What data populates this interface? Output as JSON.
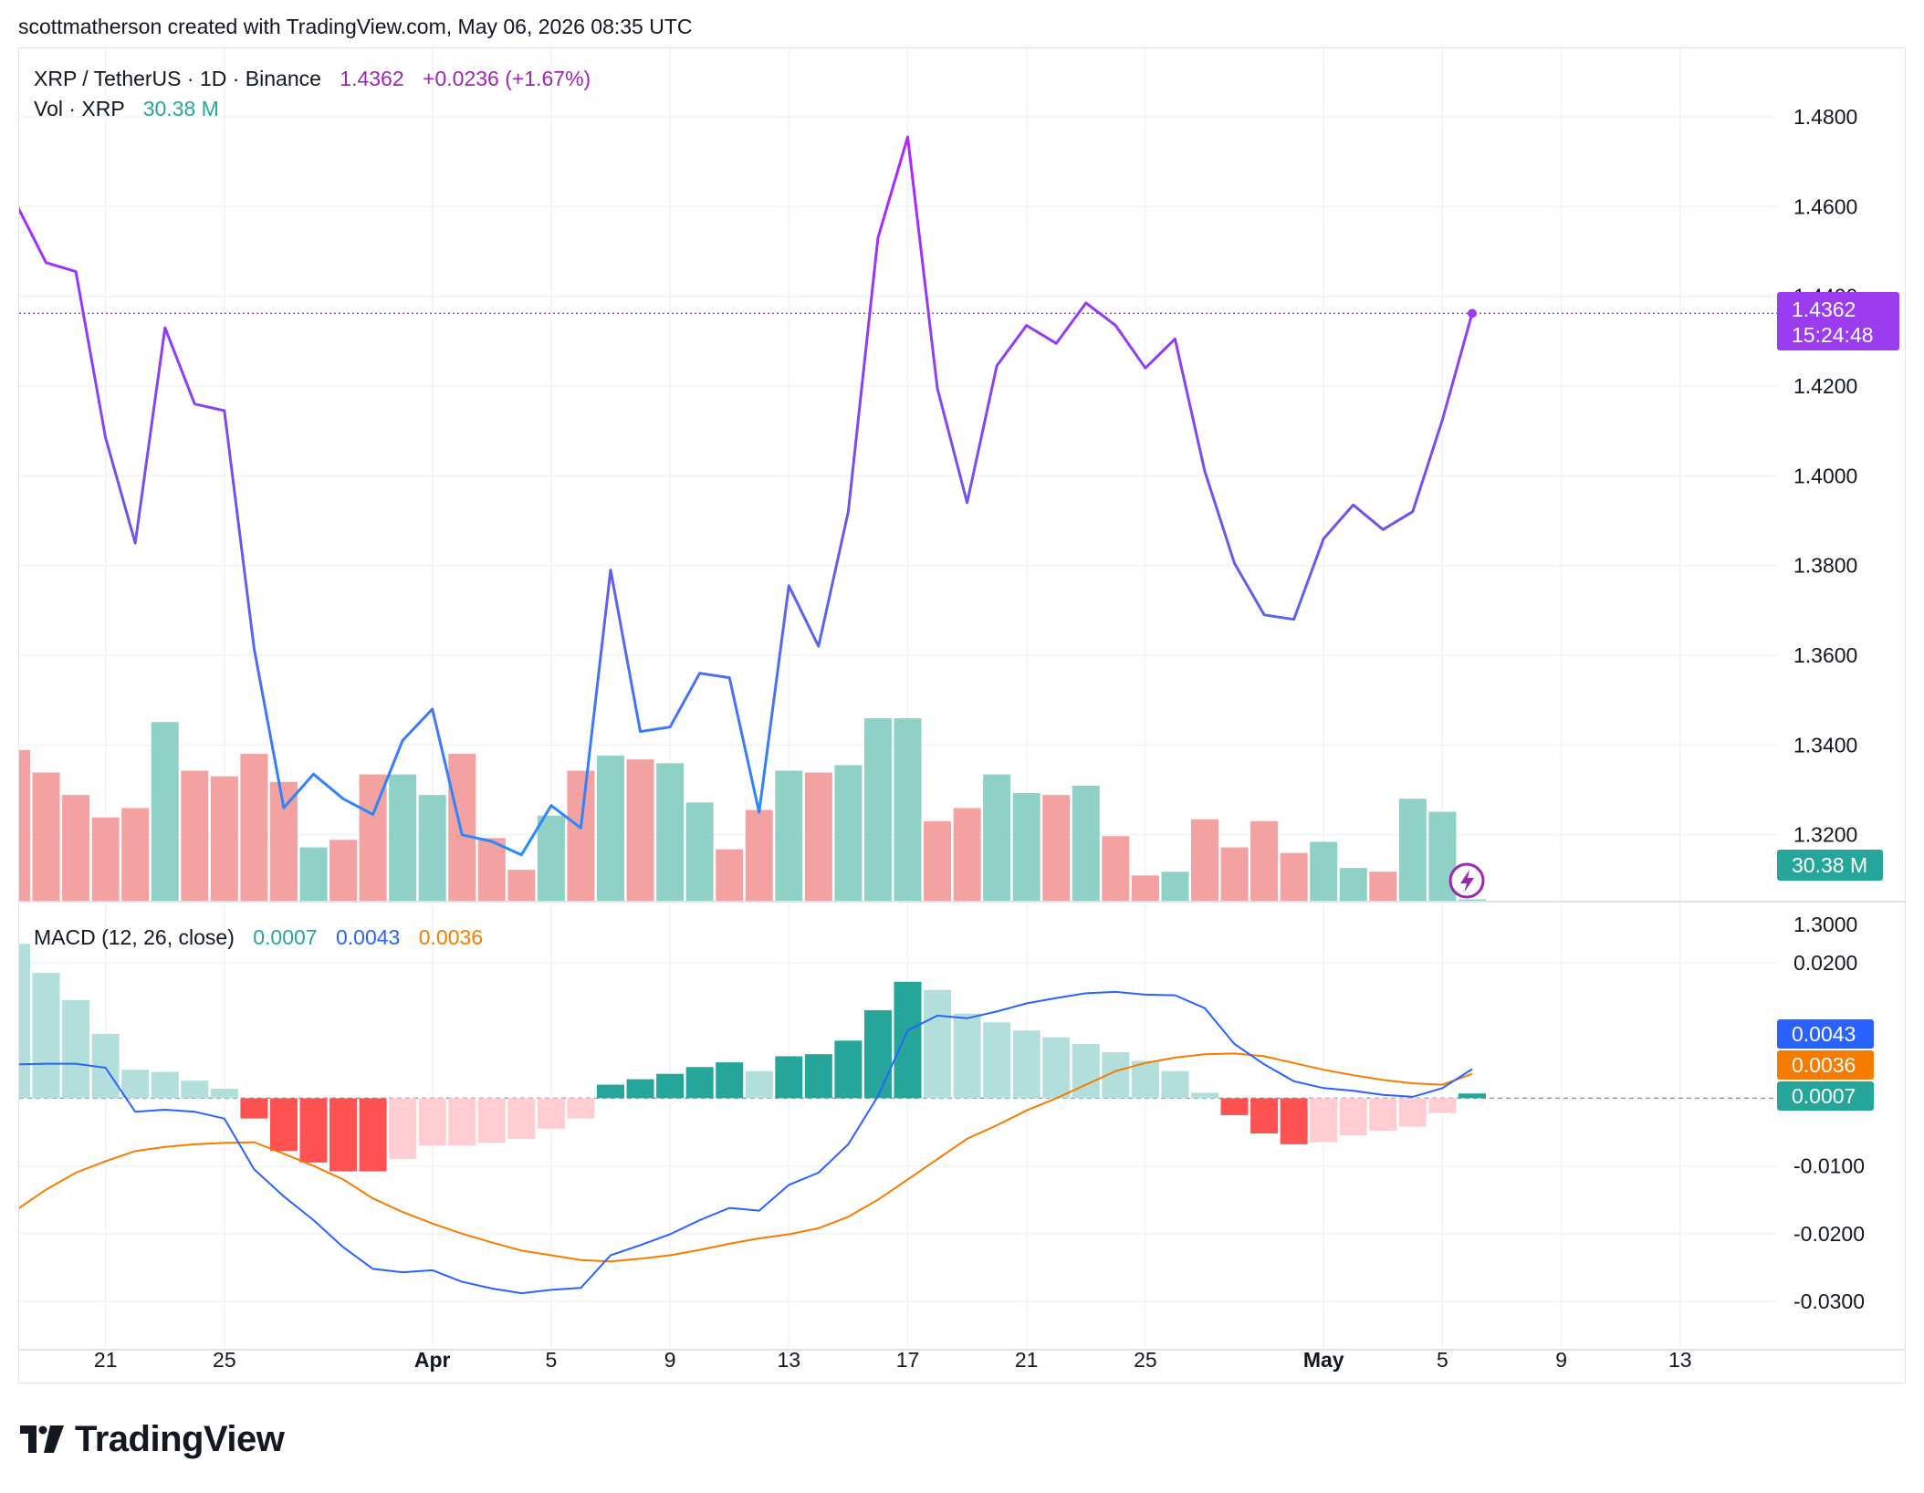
{
  "header": {
    "credit": "scottmatherson created with TradingView.com, May 06, 2026 08:35 UTC"
  },
  "legend": {
    "symbol": "XRP / TetherUS · 1D · Binance",
    "price": "1.4362",
    "change": "+0.0236 (+1.67%)",
    "vol_label": "Vol · XRP",
    "vol_value": "30.38 M",
    "macd_label": "MACD (12, 26, close)",
    "macd_hist": "0.0007",
    "macd_line": "0.0043",
    "macd_signal": "0.0036"
  },
  "badges": {
    "price": "1.4362",
    "countdown": "15:24:48",
    "volume": "30.38 M",
    "macd_line": "0.0043",
    "macd_signal": "0.0036",
    "macd_hist": "0.0007"
  },
  "logo": {
    "text": "TradingView"
  },
  "colors": {
    "purple": "#9c27b0",
    "violet": "#7b4dff",
    "blue_line": "#2962ff",
    "orange_line": "#f57c00",
    "up_volume": "#8fd1c6",
    "down_volume": "#f4a1a1",
    "hist_up_strong": "#26a69a",
    "hist_up_weak": "#b2dfdb",
    "hist_down_strong": "#ff5252",
    "hist_down_weak": "#ffcdd2"
  },
  "chart_data": {
    "type": "line",
    "title": "XRP / TetherUS · 1D · Binance",
    "price_axis": {
      "ticks": [
        "1.4800",
        "1.4600",
        "1.4400",
        "1.4200",
        "1.4000",
        "1.3800",
        "1.3600",
        "1.3400",
        "1.3200",
        "1.3000"
      ],
      "ylim": [
        1.3,
        1.49
      ]
    },
    "x_ticks": [
      {
        "label": "21",
        "date": "2026-03-21"
      },
      {
        "label": "25",
        "date": "2026-03-25"
      },
      {
        "label": "Apr",
        "date": "2026-04-01",
        "bold": true
      },
      {
        "label": "5",
        "date": "2026-04-05"
      },
      {
        "label": "9",
        "date": "2026-04-09"
      },
      {
        "label": "13",
        "date": "2026-04-13"
      },
      {
        "label": "17",
        "date": "2026-04-17"
      },
      {
        "label": "21",
        "date": "2026-04-21"
      },
      {
        "label": "25",
        "date": "2026-04-25"
      },
      {
        "label": "May",
        "date": "2026-05-01",
        "bold": true
      },
      {
        "label": "5",
        "date": "2026-05-05"
      },
      {
        "label": "9",
        "date": "2026-05-09"
      },
      {
        "label": "13",
        "date": "2026-05-13"
      }
    ],
    "dates": [
      "2026-03-18",
      "2026-03-19",
      "2026-03-20",
      "2026-03-21",
      "2026-03-22",
      "2026-03-23",
      "2026-03-24",
      "2026-03-25",
      "2026-03-26",
      "2026-03-27",
      "2026-03-28",
      "2026-03-29",
      "2026-03-30",
      "2026-03-31",
      "2026-04-01",
      "2026-04-02",
      "2026-04-03",
      "2026-04-04",
      "2026-04-05",
      "2026-04-06",
      "2026-04-07",
      "2026-04-08",
      "2026-04-09",
      "2026-04-10",
      "2026-04-11",
      "2026-04-12",
      "2026-04-13",
      "2026-04-14",
      "2026-04-15",
      "2026-04-16",
      "2026-04-17",
      "2026-04-18",
      "2026-04-19",
      "2026-04-20",
      "2026-04-21",
      "2026-04-22",
      "2026-04-23",
      "2026-04-24",
      "2026-04-25",
      "2026-04-26",
      "2026-04-27",
      "2026-04-28",
      "2026-04-29",
      "2026-04-30",
      "2026-05-01",
      "2026-05-02",
      "2026-05-03",
      "2026-05-04",
      "2026-05-05",
      "2026-05-06"
    ],
    "series": [
      {
        "name": "XRP / TetherUS",
        "values": [
          1.4605,
          1.4475,
          1.4455,
          1.4085,
          1.385,
          1.433,
          1.416,
          1.4145,
          1.3615,
          1.326,
          1.3335,
          1.328,
          1.3245,
          1.341,
          1.348,
          1.32,
          1.3185,
          1.3155,
          1.3265,
          1.3215,
          1.379,
          1.343,
          1.344,
          1.356,
          1.355,
          1.325,
          1.3755,
          1.362,
          1.392,
          1.453,
          1.4755,
          1.4195,
          1.394,
          1.4245,
          1.4335,
          1.4295,
          1.4385,
          1.4335,
          1.424,
          1.4305,
          1.401,
          1.3805,
          1.369,
          1.368,
          1.386,
          1.3935,
          1.388,
          1.392,
          1.4125,
          1.4362
        ]
      },
      {
        "name": "Vol · XRP",
        "values": [
          40.5,
          34.5,
          28.5,
          22.5,
          25.0,
          48.0,
          35.0,
          33.5,
          39.5,
          32.0,
          14.5,
          16.5,
          34.0,
          34.0,
          28.5,
          39.5,
          17.0,
          8.5,
          23.0,
          35.0,
          39.0,
          38.0,
          37.0,
          26.5,
          14.0,
          24.5,
          35.0,
          34.5,
          36.5,
          49.0,
          49.0,
          21.5,
          25.0,
          34.0,
          29.0,
          28.5,
          31.0,
          17.5,
          7.0,
          8.0,
          22.0,
          14.5,
          21.5,
          13.0,
          16.0,
          9.0,
          8.0,
          27.5,
          24.0,
          0.6
        ]
      }
    ],
    "volume_up": [
      false,
      false,
      false,
      false,
      false,
      true,
      false,
      false,
      false,
      false,
      true,
      false,
      false,
      true,
      true,
      false,
      false,
      false,
      true,
      false,
      true,
      false,
      true,
      true,
      false,
      false,
      true,
      false,
      true,
      true,
      true,
      false,
      false,
      true,
      true,
      false,
      true,
      false,
      false,
      true,
      false,
      false,
      false,
      false,
      true,
      true,
      false,
      true,
      true,
      true
    ],
    "macd": {
      "axis_ticks": [
        "0.0200",
        "-0.0100",
        "-0.0200",
        "-0.0300"
      ],
      "ylim": [
        -0.0335,
        0.0225
      ],
      "zero": 0,
      "macd_line": [
        0.005,
        0.0051,
        0.0051,
        0.0045,
        -0.002,
        -0.0017,
        -0.002,
        -0.003,
        -0.0105,
        -0.0145,
        -0.018,
        -0.022,
        -0.0252,
        -0.0257,
        -0.0254,
        -0.0271,
        -0.0281,
        -0.0288,
        -0.0283,
        -0.028,
        -0.0232,
        -0.0217,
        -0.0201,
        -0.018,
        -0.0162,
        -0.0166,
        -0.0128,
        -0.011,
        -0.0068,
        0.0003,
        0.01,
        0.0122,
        0.0118,
        0.0128,
        0.014,
        0.0148,
        0.0155,
        0.0157,
        0.0153,
        0.0152,
        0.0133,
        0.008,
        0.005,
        0.0025,
        0.0015,
        0.0011,
        0.0005,
        0.0002,
        0.0015,
        0.0043
      ],
      "signal_line": [
        -0.0165,
        -0.0135,
        -0.011,
        -0.0093,
        -0.0078,
        -0.0072,
        -0.0068,
        -0.0066,
        -0.0065,
        -0.0082,
        -0.01,
        -0.012,
        -0.0148,
        -0.0168,
        -0.0185,
        -0.02,
        -0.0213,
        -0.0225,
        -0.0232,
        -0.0239,
        -0.0241,
        -0.0237,
        -0.0232,
        -0.0224,
        -0.0215,
        -0.0207,
        -0.0201,
        -0.0192,
        -0.0175,
        -0.015,
        -0.012,
        -0.009,
        -0.006,
        -0.004,
        -0.0018,
        0.0,
        0.002,
        0.004,
        0.0052,
        0.006,
        0.0065,
        0.0066,
        0.0062,
        0.0052,
        0.0042,
        0.0034,
        0.0027,
        0.0022,
        0.002,
        0.0036
      ],
      "histogram": [
        0.0228,
        0.0185,
        0.0145,
        0.0095,
        0.0042,
        0.0039,
        0.0026,
        0.0014,
        -0.003,
        -0.0078,
        -0.0095,
        -0.0108,
        -0.0108,
        -0.009,
        -0.007,
        -0.007,
        -0.0066,
        -0.006,
        -0.0045,
        -0.003,
        0.002,
        0.0028,
        0.0036,
        0.0046,
        0.0053,
        0.004,
        0.0062,
        0.0065,
        0.0085,
        0.013,
        0.0172,
        0.016,
        0.0125,
        0.0112,
        0.01,
        0.009,
        0.008,
        0.0068,
        0.0055,
        0.004,
        0.0008,
        -0.0025,
        -0.0052,
        -0.0068,
        -0.0065,
        -0.0055,
        -0.0048,
        -0.0042,
        -0.0022,
        0.0007
      ],
      "hist_strong": [
        false,
        false,
        false,
        false,
        false,
        false,
        false,
        false,
        true,
        true,
        true,
        true,
        true,
        false,
        false,
        false,
        false,
        false,
        false,
        false,
        true,
        true,
        true,
        true,
        true,
        false,
        true,
        true,
        true,
        true,
        true,
        false,
        false,
        false,
        false,
        false,
        false,
        false,
        false,
        false,
        false,
        true,
        true,
        true,
        false,
        false,
        false,
        false,
        false,
        true
      ]
    },
    "grid": true
  }
}
